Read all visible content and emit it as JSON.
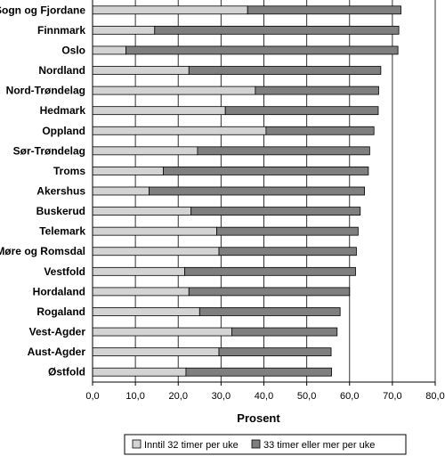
{
  "chart_data": {
    "type": "bar",
    "orientation": "horizontal",
    "stacked": true,
    "xlabel": "Prosent",
    "xlim": [
      0,
      80
    ],
    "xticks": [
      "0,0",
      "10,0",
      "20,0",
      "30,0",
      "40,0",
      "50,0",
      "60,0",
      "70,0",
      "80,0"
    ],
    "grid": "vertical",
    "legend_position": "bottom",
    "categories": [
      "Sogn og Fjordane",
      "Finnmark",
      "Oslo",
      "Nordland",
      "Nord-Trøndelag",
      "Hedmark",
      "Oppland",
      "Sør-Trøndelag",
      "Troms",
      "Akershus",
      "Buskerud",
      "Telemark",
      "Møre og Romsdal",
      "Vestfold",
      "Hordaland",
      "Rogaland",
      "Vest-Agder",
      "Aust-Agder",
      "Østfold"
    ],
    "series": [
      {
        "name": "Inntil 32 timer per uke",
        "color": "#d3d3d3",
        "values": [
          36.2,
          14.5,
          7.8,
          22.5,
          38.0,
          31.0,
          40.5,
          24.5,
          16.5,
          13.2,
          23.0,
          29.0,
          29.5,
          21.5,
          22.5,
          25.0,
          32.5,
          29.5,
          21.8
        ]
      },
      {
        "name": "33 timer eller mer per uke",
        "color": "#7f7f7f",
        "values": [
          35.8,
          57.0,
          63.5,
          44.8,
          28.8,
          35.7,
          25.2,
          40.2,
          47.9,
          50.3,
          39.5,
          33.0,
          32.1,
          39.9,
          37.5,
          32.8,
          24.6,
          26.2,
          34.0
        ]
      }
    ]
  }
}
